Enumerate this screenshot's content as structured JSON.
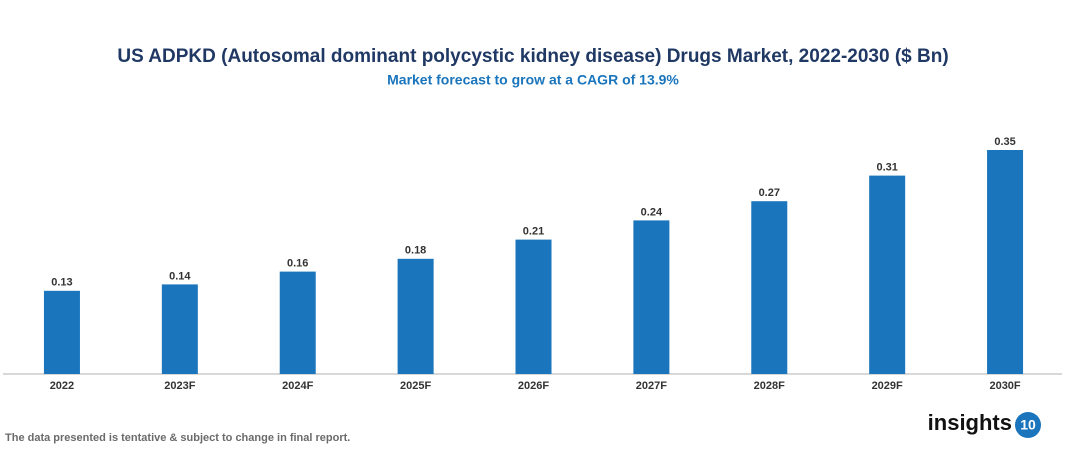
{
  "chart_data": {
    "type": "bar",
    "title": "US ADPKD (Autosomal dominant polycystic kidney disease) Drugs Market, 2022-2030 ($ Bn)",
    "subtitle": "Market forecast to grow at a CAGR of 13.9%",
    "categories": [
      "2022",
      "2023F",
      "2024F",
      "2025F",
      "2026F",
      "2027F",
      "2028F",
      "2029F",
      "2030F"
    ],
    "values": [
      0.13,
      0.14,
      0.16,
      0.18,
      0.21,
      0.24,
      0.27,
      0.31,
      0.35
    ],
    "color": "#1a75bc",
    "footnote": "The data presented is tentative & subject to change in final report."
  },
  "logo": {
    "text": "insights",
    "badge": "10"
  }
}
